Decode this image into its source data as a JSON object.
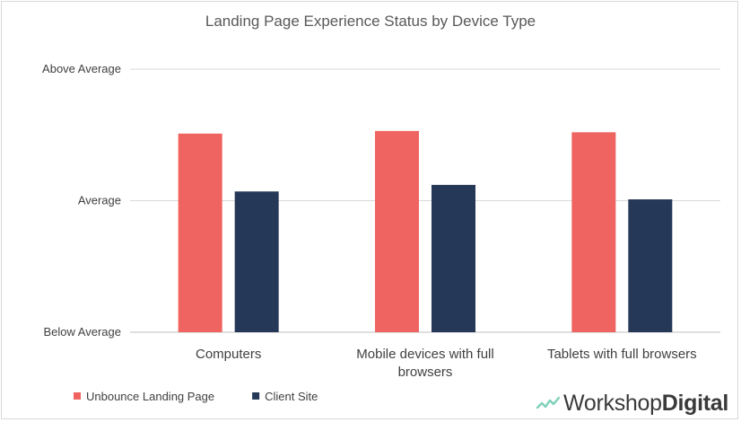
{
  "chart_data": {
    "type": "bar",
    "title": "Landing Page Experience Status by Device Type",
    "categories": [
      [
        "Computers"
      ],
      [
        "Mobile devices with full",
        "browsers"
      ],
      [
        "Tablets with full browsers"
      ]
    ],
    "y_ticks": [
      "Below Average",
      "Average",
      "Above Average"
    ],
    "ylim": [
      0,
      2
    ],
    "series": [
      {
        "name": "Unbounce Landing Page",
        "color": "#ef6461",
        "values": [
          1.51,
          1.53,
          1.52
        ]
      },
      {
        "name": "Client Site",
        "color": "#253858",
        "values": [
          1.07,
          1.12,
          1.01
        ]
      }
    ],
    "grid": true,
    "legend": "bottom-left"
  },
  "logo": {
    "part1": "Workshop",
    "part2": "Digital",
    "icon": "pulse-line-icon",
    "accent": "#7fd1b9"
  }
}
